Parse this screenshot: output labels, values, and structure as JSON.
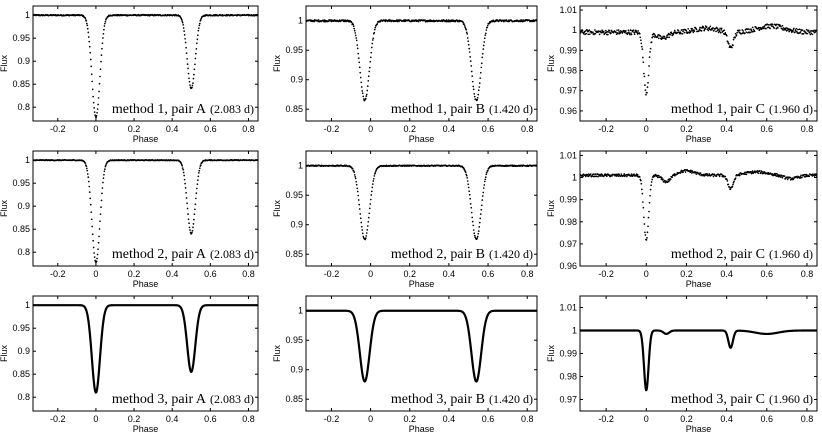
{
  "chart_data": [
    {
      "id": "m1A",
      "type": "scatter",
      "label_text": "method 1, pair A",
      "label_period": "(2.083 d)",
      "xlabel": "Phase",
      "ylabel": "Flux",
      "xlim": [
        -0.33,
        0.85
      ],
      "ylim": [
        0.77,
        1.02
      ],
      "xticks": [
        -0.2,
        0,
        0.2,
        0.4,
        0.6,
        0.8
      ],
      "xtick_labels": [
        "-0.2",
        "0",
        "0.2",
        "0.4",
        "0.6",
        "0.8"
      ],
      "yticks": [
        0.8,
        0.85,
        0.9,
        0.95,
        1
      ],
      "ytick_labels": [
        "0.8",
        "0.85",
        "0.9",
        "0.95",
        "1"
      ],
      "baseline": 1.0,
      "noise": 0.0012,
      "eclipses": [
        {
          "center": 0.0,
          "depth": 0.222,
          "width": 0.03
        },
        {
          "center": 0.5,
          "depth": 0.16,
          "width": 0.03
        }
      ],
      "wiggles": []
    },
    {
      "id": "m1B",
      "type": "scatter",
      "label_text": "method 1, pair B",
      "label_period": "(1.420 d)",
      "xlabel": "Phase",
      "ylabel": "Flux",
      "xlim": [
        -0.33,
        0.85
      ],
      "ylim": [
        0.83,
        1.025
      ],
      "xticks": [
        -0.2,
        0,
        0.2,
        0.4,
        0.6,
        0.8
      ],
      "xtick_labels": [
        "-0.2",
        "0",
        "0.2",
        "0.4",
        "0.6",
        "0.8"
      ],
      "yticks": [
        0.85,
        0.9,
        0.95,
        1
      ],
      "ytick_labels": [
        "0.85",
        "0.9",
        "0.95",
        "1"
      ],
      "baseline": 1.0,
      "noise": 0.0015,
      "eclipses": [
        {
          "center": -0.03,
          "depth": 0.135,
          "width": 0.035
        },
        {
          "center": 0.54,
          "depth": 0.135,
          "width": 0.035
        }
      ],
      "wiggles": []
    },
    {
      "id": "m1C",
      "type": "scatter",
      "label_text": "method 1, pair C",
      "label_period": "(1.960 d)",
      "xlabel": "Phase",
      "ylabel": "Flux",
      "xlim": [
        -0.33,
        0.85
      ],
      "ylim": [
        0.955,
        1.012
      ],
      "xticks": [
        -0.2,
        0,
        0.2,
        0.4,
        0.6,
        0.8
      ],
      "xtick_labels": [
        "-0.2",
        "0",
        "0.2",
        "0.4",
        "0.6",
        "0.8"
      ],
      "yticks": [
        0.96,
        0.97,
        0.98,
        0.99,
        1,
        1.01
      ],
      "ytick_labels": [
        "0.96",
        "0.97",
        "0.98",
        "0.99",
        "1",
        "1.01"
      ],
      "baseline": 0.999,
      "noise": 0.0012,
      "eclipses": [
        {
          "center": 0.0,
          "depth": 0.03,
          "width": 0.018
        },
        {
          "center": 0.42,
          "depth": 0.008,
          "width": 0.02
        }
      ],
      "wiggles": [
        {
          "center": 0.3,
          "amp": 0.002,
          "width": 0.08
        },
        {
          "center": 0.62,
          "amp": 0.003,
          "width": 0.1
        },
        {
          "center": 0.08,
          "amp": -0.003,
          "width": 0.04
        }
      ]
    },
    {
      "id": "m2A",
      "type": "scatter",
      "label_text": "method 2, pair A",
      "label_period": "(2.083 d)",
      "xlabel": "Phase",
      "ylabel": "Flux",
      "xlim": [
        -0.33,
        0.85
      ],
      "ylim": [
        0.77,
        1.02
      ],
      "xticks": [
        -0.2,
        0,
        0.2,
        0.4,
        0.6,
        0.8
      ],
      "xtick_labels": [
        "-0.2",
        "0",
        "0.2",
        "0.4",
        "0.6",
        "0.8"
      ],
      "yticks": [
        0.8,
        0.85,
        0.9,
        0.95,
        1
      ],
      "ytick_labels": [
        "0.8",
        "0.85",
        "0.9",
        "0.95",
        "1"
      ],
      "baseline": 1.0,
      "noise": 0.0008,
      "eclipses": [
        {
          "center": 0.0,
          "depth": 0.222,
          "width": 0.03
        },
        {
          "center": 0.5,
          "depth": 0.16,
          "width": 0.03
        }
      ],
      "wiggles": []
    },
    {
      "id": "m2B",
      "type": "scatter",
      "label_text": "method 2, pair B",
      "label_period": "(1.420 d)",
      "xlabel": "Phase",
      "ylabel": "Flux",
      "xlim": [
        -0.33,
        0.85
      ],
      "ylim": [
        0.83,
        1.025
      ],
      "xticks": [
        -0.2,
        0,
        0.2,
        0.4,
        0.6,
        0.8
      ],
      "xtick_labels": [
        "-0.2",
        "0",
        "0.2",
        "0.4",
        "0.6",
        "0.8"
      ],
      "yticks": [
        0.85,
        0.9,
        0.95,
        1
      ],
      "ytick_labels": [
        "0.85",
        "0.9",
        "0.95",
        "1"
      ],
      "baseline": 1.0,
      "noise": 0.0008,
      "eclipses": [
        {
          "center": -0.03,
          "depth": 0.125,
          "width": 0.035
        },
        {
          "center": 0.54,
          "depth": 0.125,
          "width": 0.035
        }
      ],
      "wiggles": []
    },
    {
      "id": "m2C",
      "type": "scatter",
      "label_text": "method 2, pair C",
      "label_period": "(1.960 d)",
      "xlabel": "Phase",
      "ylabel": "Flux",
      "xlim": [
        -0.33,
        0.85
      ],
      "ylim": [
        0.96,
        1.012
      ],
      "xticks": [
        -0.2,
        0,
        0.2,
        0.4,
        0.6,
        0.8
      ],
      "xtick_labels": [
        "-0.2",
        "0",
        "0.2",
        "0.4",
        "0.6",
        "0.8"
      ],
      "yticks": [
        0.96,
        0.97,
        0.98,
        0.99,
        1,
        1.01
      ],
      "ytick_labels": [
        "0.96",
        "0.97",
        "0.98",
        "0.99",
        "1",
        "1.01"
      ],
      "baseline": 1.001,
      "noise": 0.0006,
      "eclipses": [
        {
          "center": 0.0,
          "depth": 0.029,
          "width": 0.018
        },
        {
          "center": 0.42,
          "depth": 0.006,
          "width": 0.02
        }
      ],
      "wiggles": [
        {
          "center": 0.2,
          "amp": 0.002,
          "width": 0.06
        },
        {
          "center": 0.55,
          "amp": 0.0015,
          "width": 0.08
        },
        {
          "center": 0.1,
          "amp": -0.003,
          "width": 0.03
        },
        {
          "center": 0.72,
          "amp": -0.0015,
          "width": 0.05
        }
      ]
    },
    {
      "id": "m3A",
      "type": "line",
      "label_text": "method 3, pair A",
      "label_period": "(2.083 d)",
      "xlabel": "Phase",
      "ylabel": "Flux",
      "xlim": [
        -0.33,
        0.85
      ],
      "ylim": [
        0.77,
        1.02
      ],
      "xticks": [
        -0.2,
        0,
        0.2,
        0.4,
        0.6,
        0.8
      ],
      "xtick_labels": [
        "-0.2",
        "0",
        "0.2",
        "0.4",
        "0.6",
        "0.8"
      ],
      "yticks": [
        0.8,
        0.85,
        0.9,
        0.95,
        1
      ],
      "ytick_labels": [
        "0.8",
        "0.85",
        "0.9",
        "0.95",
        "1"
      ],
      "baseline": 1.0,
      "noise": 0,
      "eclipses": [
        {
          "center": 0.0,
          "depth": 0.19,
          "width": 0.03
        },
        {
          "center": 0.5,
          "depth": 0.145,
          "width": 0.03
        }
      ],
      "wiggles": []
    },
    {
      "id": "m3B",
      "type": "line",
      "label_text": "method 3, pair B",
      "label_period": "(1.420 d)",
      "xlabel": "Phase",
      "ylabel": "Flux",
      "xlim": [
        -0.33,
        0.85
      ],
      "ylim": [
        0.83,
        1.025
      ],
      "xticks": [
        -0.2,
        0,
        0.2,
        0.4,
        0.6,
        0.8
      ],
      "xtick_labels": [
        "-0.2",
        "0",
        "0.2",
        "0.4",
        "0.6",
        "0.8"
      ],
      "yticks": [
        0.85,
        0.9,
        0.95,
        1
      ],
      "ytick_labels": [
        "0.85",
        "0.9",
        "0.95",
        "1"
      ],
      "baseline": 1.0,
      "noise": 0,
      "eclipses": [
        {
          "center": -0.03,
          "depth": 0.12,
          "width": 0.035
        },
        {
          "center": 0.54,
          "depth": 0.12,
          "width": 0.035
        }
      ],
      "wiggles": []
    },
    {
      "id": "m3C",
      "type": "line",
      "label_text": "method 3, pair C",
      "label_period": "(1.960 d)",
      "xlabel": "Phase",
      "ylabel": "Flux",
      "xlim": [
        -0.33,
        0.85
      ],
      "ylim": [
        0.965,
        1.015
      ],
      "xticks": [
        -0.2,
        0,
        0.2,
        0.4,
        0.6,
        0.8
      ],
      "xtick_labels": [
        "-0.2",
        "0",
        "0.2",
        "0.4",
        "0.6",
        "0.8"
      ],
      "yticks": [
        0.97,
        0.98,
        0.99,
        1,
        1.01
      ],
      "ytick_labels": [
        "0.97",
        "0.98",
        "0.99",
        "1",
        "1.01"
      ],
      "baseline": 1.0,
      "noise": 0,
      "eclipses": [
        {
          "center": 0.0,
          "depth": 0.026,
          "width": 0.016
        },
        {
          "center": 0.42,
          "depth": 0.0075,
          "width": 0.016
        }
      ],
      "wiggles": [
        {
          "center": 0.1,
          "amp": -0.0015,
          "width": 0.02
        },
        {
          "center": 0.6,
          "amp": -0.0015,
          "width": 0.08
        }
      ]
    }
  ]
}
